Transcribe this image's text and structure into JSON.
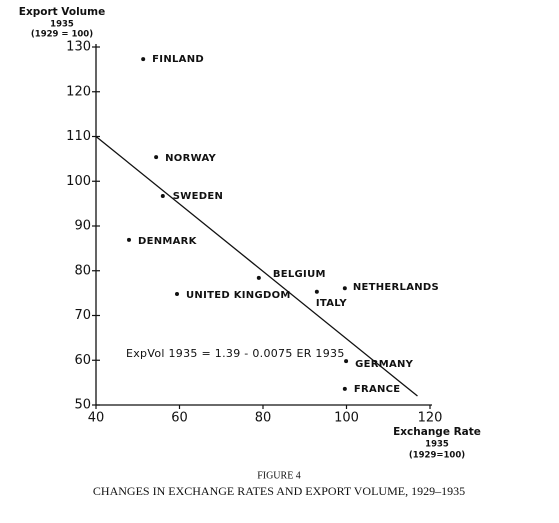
{
  "chart_data": {
    "type": "scatter",
    "y_label": [
      "Export Volume",
      "1935",
      "(1929 = 100)"
    ],
    "x_label": [
      "Exchange Rate",
      "1935",
      "(1929=100)"
    ],
    "labels": [
      "FINLAND",
      "NORWAY",
      "SWEDEN",
      "DENMARK",
      "BELGIUM",
      "UNITED KINGDOM",
      "ITALY",
      "NETHERLANDS",
      "GERMANY",
      "FRANCE"
    ],
    "x": [
      51.3,
      54.4,
      56.0,
      47.9,
      79.0,
      59.4,
      92.9,
      99.6,
      99.9,
      99.6
    ],
    "y": [
      127.3,
      105.4,
      96.7,
      86.9,
      78.4,
      74.8,
      75.3,
      76.1,
      59.8,
      53.6
    ],
    "fit_line": {
      "x": [
        40,
        117
      ],
      "y": [
        110,
        52
      ]
    },
    "annotation": "ExpVol 1935 = 1.39 - 0.0075 ER 1935",
    "xlim": [
      40,
      120
    ],
    "xticks": [
      40,
      60,
      80,
      100,
      120
    ],
    "ylim": [
      50,
      130
    ],
    "yticks": [
      50,
      60,
      70,
      80,
      90,
      100,
      110,
      120,
      130
    ],
    "caption": [
      "FIGURE 4",
      "CHANGES IN EXCHANGE RATES AND EXPORT VOLUME, 1929–1935"
    ]
  }
}
